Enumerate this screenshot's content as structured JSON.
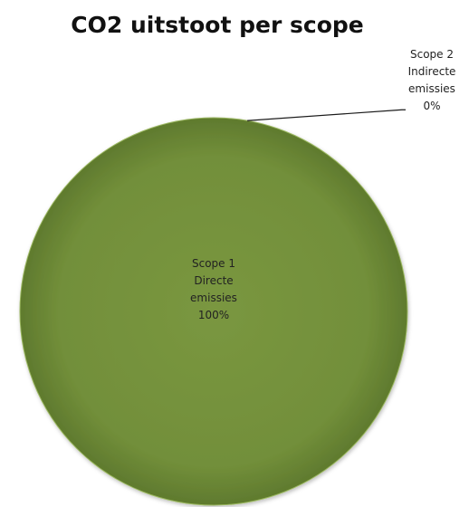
{
  "chart_data": {
    "type": "pie",
    "title": "CO2 uitstoot per scope",
    "slices": [
      {
        "name": "Scope 1 Directe emissies",
        "label_lines": [
          "Scope 1",
          "Directe",
          "emissies",
          "100%"
        ],
        "value": 100,
        "color": "#77933c"
      },
      {
        "name": "Scope 2 Indirecte emissies",
        "label_lines": [
          "Scope 2",
          "Indirecte",
          "emissies",
          "0%"
        ],
        "value": 0,
        "color": "#4f6228"
      }
    ],
    "legend": "none",
    "data_labels": "inside-and-outside-with-leader-line"
  }
}
